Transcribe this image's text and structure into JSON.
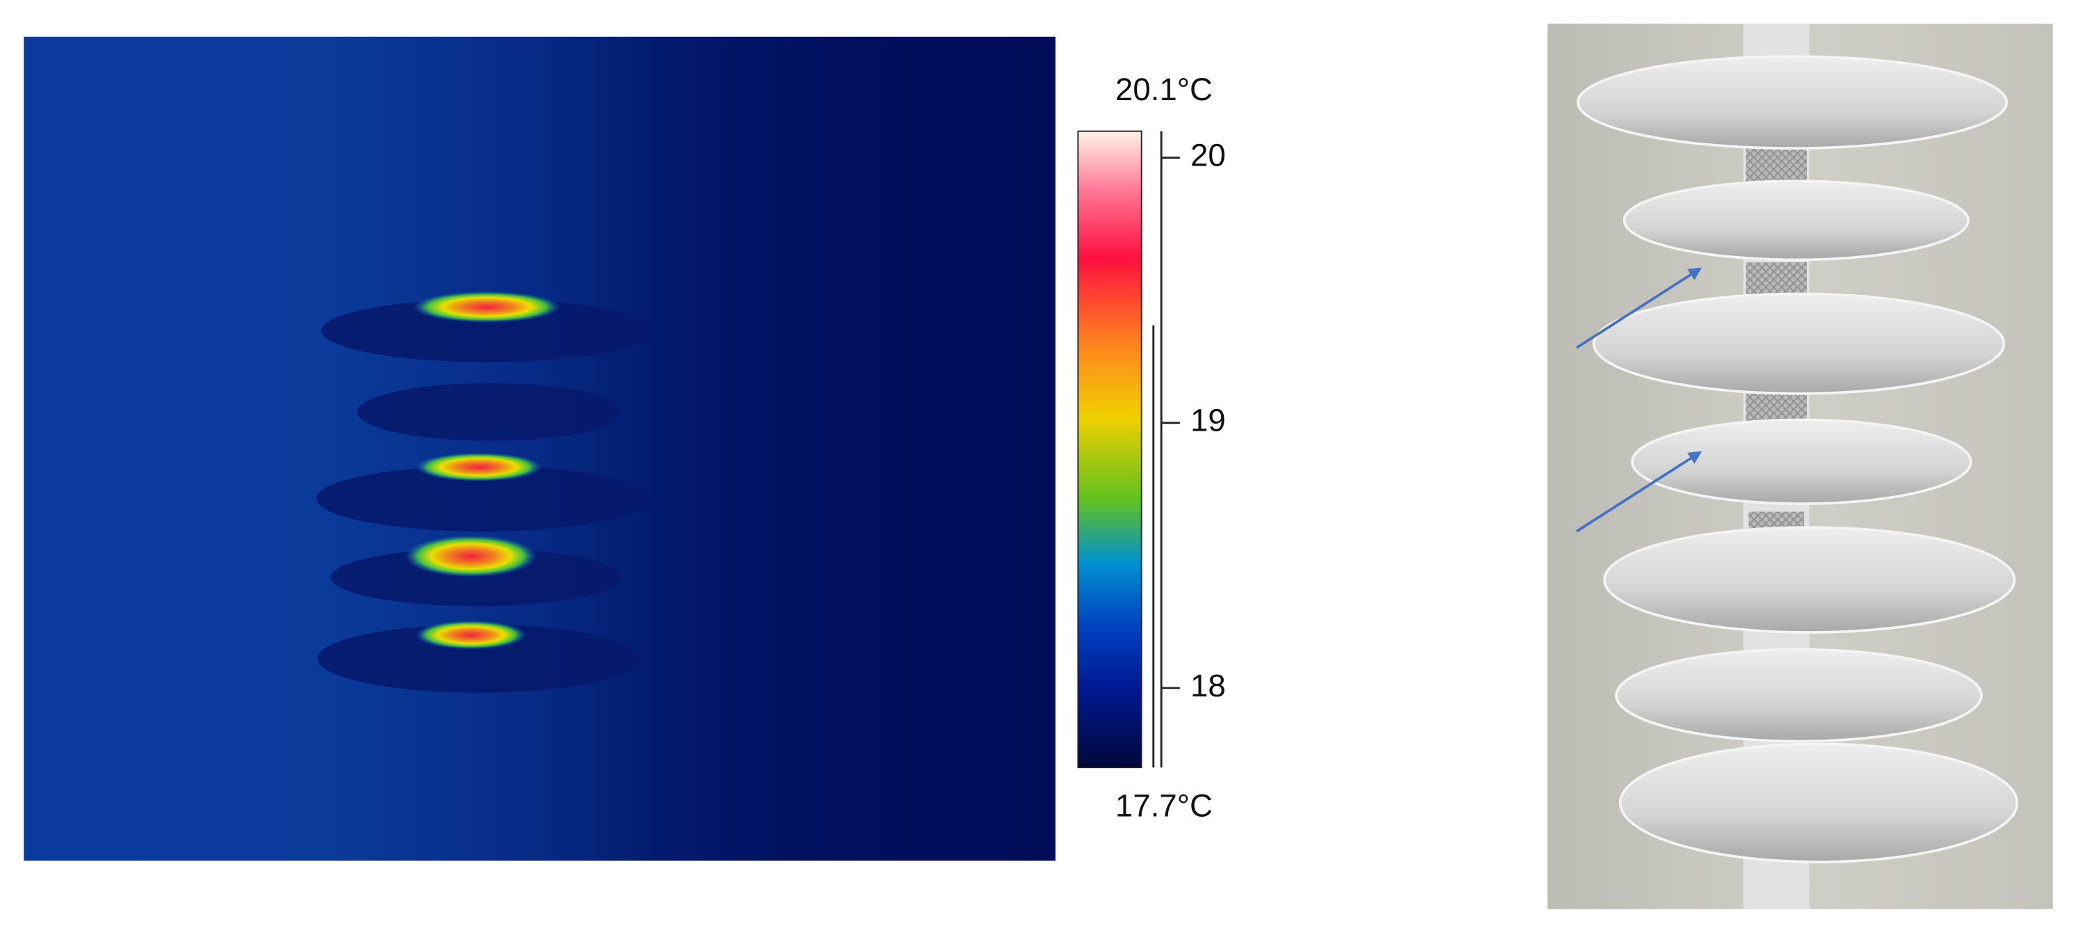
{
  "thermal_scale": {
    "max": {
      "value": 20.1,
      "label": "20.1°C"
    },
    "min": {
      "value": 17.7,
      "label": "17.7°C"
    },
    "ticks": [
      18,
      19,
      20
    ]
  }
}
